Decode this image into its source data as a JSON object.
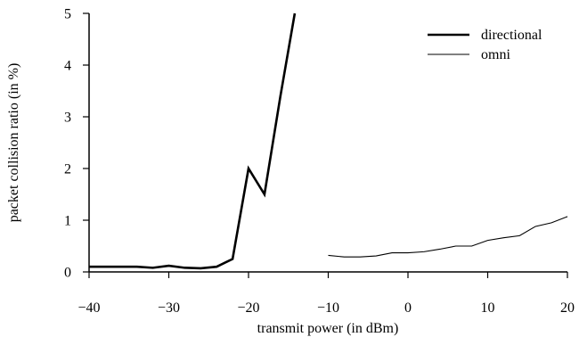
{
  "chart_data": {
    "type": "line",
    "xlabel": "transmit power (in dBm)",
    "ylabel": "packet collision ratio (in %)",
    "xlim": [
      -40,
      20
    ],
    "ylim": [
      0,
      5
    ],
    "x_ticks": [
      -40,
      -30,
      -20,
      -10,
      0,
      10,
      20
    ],
    "x_tick_labels": [
      "−40",
      "−30",
      "−20",
      "−10",
      "0",
      "10",
      "20"
    ],
    "y_ticks": [
      0,
      1,
      2,
      3,
      4,
      5
    ],
    "y_tick_labels": [
      "0",
      "1",
      "2",
      "3",
      "4",
      "5"
    ],
    "grid": false,
    "legend_position": "top-right",
    "series": [
      {
        "name": "directional",
        "line_weight": "thick",
        "color": "#000000",
        "x": [
          -40,
          -38,
          -36,
          -34,
          -32,
          -30,
          -28,
          -26,
          -24,
          -22,
          -20,
          -18,
          -16,
          -14.2
        ],
        "y": [
          0.1,
          0.1,
          0.1,
          0.1,
          0.08,
          0.12,
          0.08,
          0.07,
          0.1,
          0.25,
          2.0,
          1.5,
          3.4,
          5.0
        ]
      },
      {
        "name": "omni",
        "line_weight": "thin",
        "color": "#000000",
        "x": [
          -10,
          -8,
          -6,
          -4,
          -2,
          0,
          2,
          4,
          6,
          8,
          10,
          12,
          14,
          16,
          18,
          20
        ],
        "y": [
          0.32,
          0.29,
          0.29,
          0.31,
          0.37,
          0.37,
          0.39,
          0.44,
          0.5,
          0.5,
          0.61,
          0.66,
          0.7,
          0.88,
          0.95,
          1.07
        ]
      }
    ]
  }
}
